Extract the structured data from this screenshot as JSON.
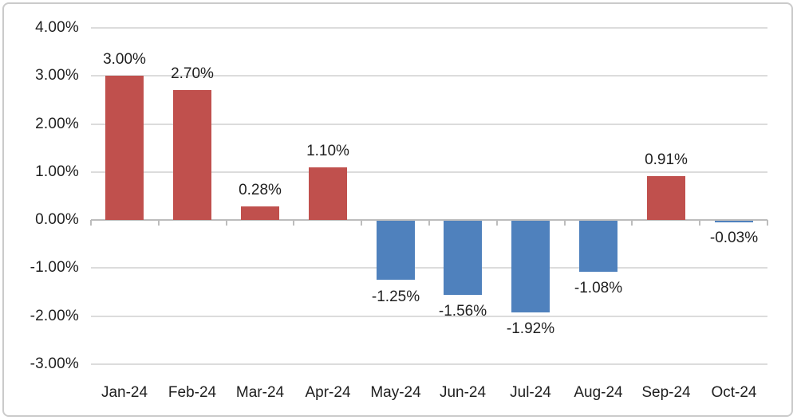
{
  "chart_data": {
    "type": "bar",
    "title": "",
    "xlabel": "",
    "ylabel": "",
    "categories": [
      "Jan-24",
      "Feb-24",
      "Mar-24",
      "Apr-24",
      "May-24",
      "Jun-24",
      "Jul-24",
      "Aug-24",
      "Sep-24",
      "Oct-24"
    ],
    "values": [
      3.0,
      2.7,
      0.28,
      1.1,
      -1.25,
      -1.56,
      -1.92,
      -1.08,
      0.91,
      -0.03
    ],
    "data_labels": [
      "3.00%",
      "2.70%",
      "0.28%",
      "1.10%",
      "-1.25%",
      "-1.56%",
      "-1.92%",
      "-1.08%",
      "0.91%",
      "-0.03%"
    ],
    "y_ticks": [
      4,
      3,
      2,
      1,
      0,
      -1,
      -2,
      -3
    ],
    "y_tick_labels": [
      "4.00%",
      "3.00%",
      "2.00%",
      "1.00%",
      "0.00%",
      "-1.00%",
      "-2.00%",
      "-3.00%"
    ],
    "ylim": [
      -3,
      4
    ],
    "grid": true,
    "legend": "none",
    "colors": {
      "positive_bar": "#C0504D",
      "negative_bar": "#4F81BD",
      "gridline": "#DCDCDC",
      "zero_axis": "#BDBDBD",
      "text": "#1F1F1F",
      "frame_border": "#CBCBCB",
      "background": "#FFFFFF"
    }
  }
}
